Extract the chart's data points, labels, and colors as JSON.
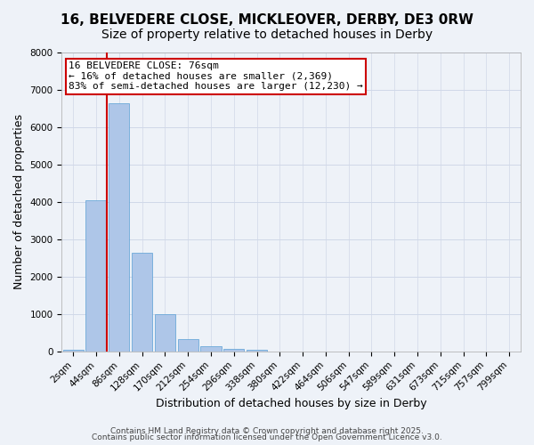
{
  "title_line1": "16, BELVEDERE CLOSE, MICKLEOVER, DERBY, DE3 0RW",
  "title_line2": "Size of property relative to detached houses in Derby",
  "xlabel": "Distribution of detached houses by size in Derby",
  "ylabel": "Number of detached properties",
  "bar_values": [
    50,
    4050,
    6650,
    2650,
    1000,
    330,
    130,
    80,
    50,
    0,
    0,
    0,
    0,
    0,
    0,
    0,
    0,
    0,
    0,
    0
  ],
  "bin_labels": [
    "2sqm",
    "44sqm",
    "86sqm",
    "128sqm",
    "170sqm",
    "212sqm",
    "254sqm",
    "296sqm",
    "338sqm",
    "380sqm",
    "422sqm",
    "464sqm",
    "506sqm",
    "547sqm",
    "589sqm",
    "631sqm",
    "673sqm",
    "715sqm",
    "757sqm",
    "799sqm"
  ],
  "bar_color": "#aec6e8",
  "bar_edgecolor": "#5a9fd4",
  "redline_x": 1.45,
  "redline_color": "#cc0000",
  "annotation_box_text": "16 BELVEDERE CLOSE: 76sqm\n← 16% of detached houses are smaller (2,369)\n83% of semi-detached houses are larger (12,230) →",
  "ylim": [
    0,
    8000
  ],
  "yticks": [
    0,
    1000,
    2000,
    3000,
    4000,
    5000,
    6000,
    7000,
    8000
  ],
  "grid_color": "#d0d8e8",
  "background_color": "#eef2f8",
  "footer_line1": "Contains HM Land Registry data © Crown copyright and database right 2025.",
  "footer_line2": "Contains public sector information licensed under the Open Government Licence v3.0.",
  "title_fontsize": 11,
  "subtitle_fontsize": 10,
  "axis_label_fontsize": 9,
  "tick_fontsize": 7.5,
  "annotation_fontsize": 8,
  "footer_fontsize": 6.5
}
